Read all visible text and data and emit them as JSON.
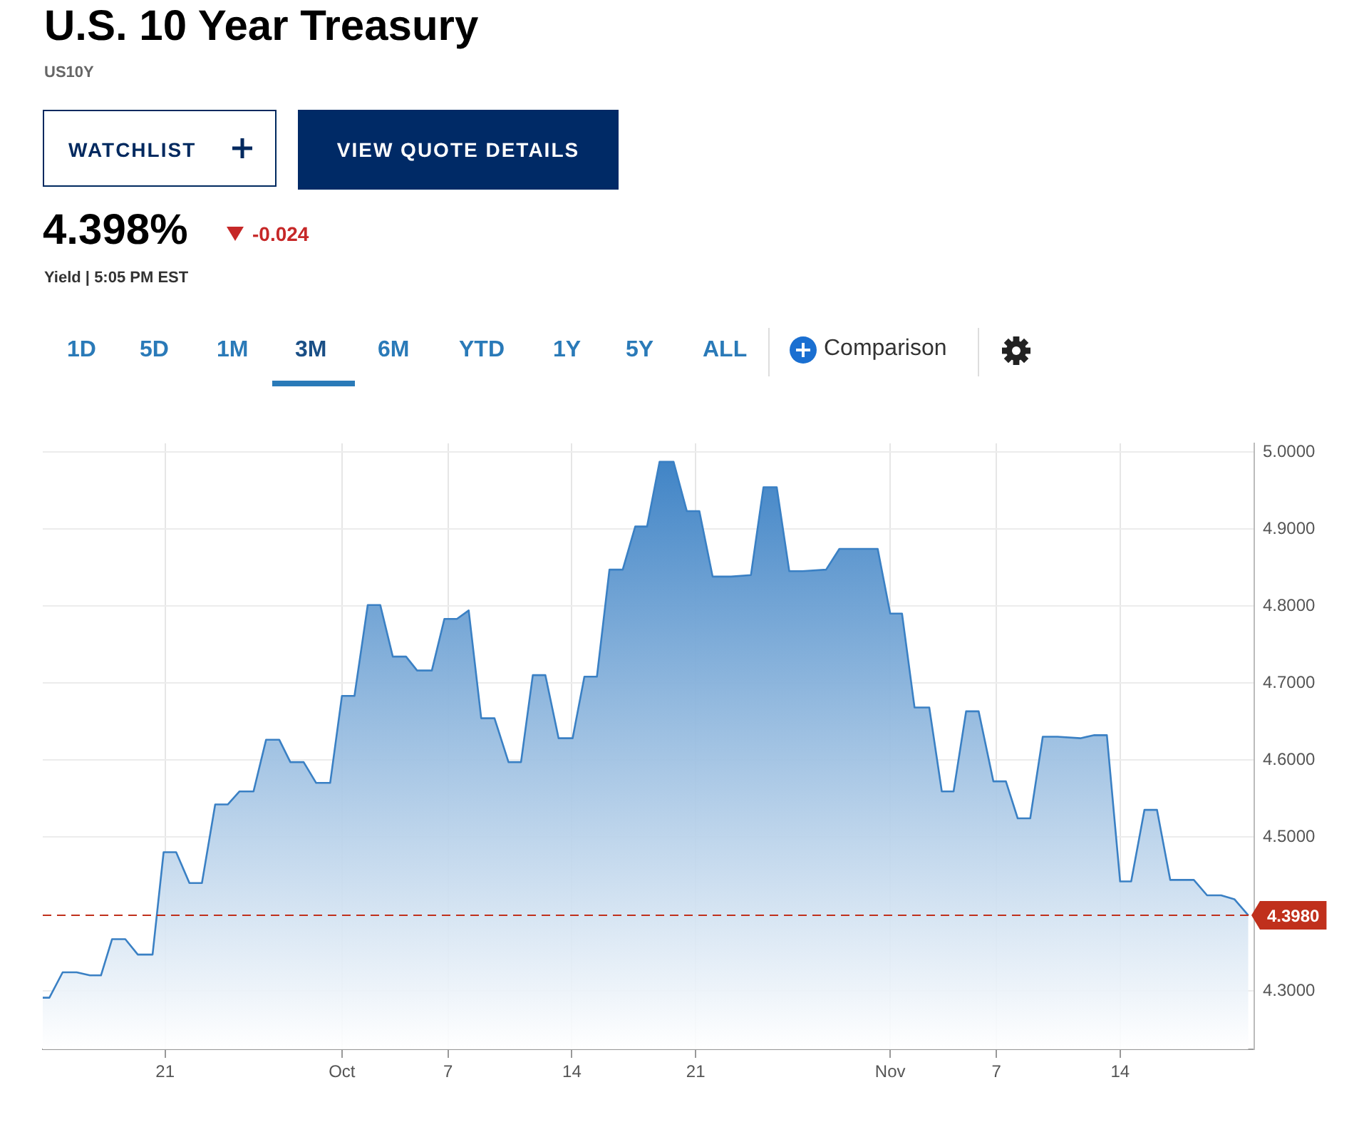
{
  "chart_data": {
    "type": "area",
    "title": "U.S. 10 Year Treasury",
    "subtitle": "US10Y",
    "annotations": [
      "4.398%",
      "-0.024",
      "Yield | 5:05 PM EST",
      "WATCHLIST",
      "VIEW QUOTE DETAILS",
      "1D",
      "5D",
      "1M",
      "3M",
      "6M",
      "YTD",
      "1Y",
      "5Y",
      "ALL",
      "Comparison"
    ],
    "x": [
      "--09-14T02:00",
      "--09-14T11:00",
      "--09-15T05:00",
      "--09-16T00:00",
      "--09-16T18:00",
      "--09-17T09:00",
      "--09-18T00:00",
      "--09-18T18:00",
      "--09-19T11:00",
      "--09-20T07:00",
      "--09-20T22:00",
      "--09-21T15:00",
      "--09-22T09:00",
      "--09-23T02:00",
      "--09-23T20:00",
      "--09-24T13:00",
      "--09-25T05:00",
      "--09-26T00:00",
      "--09-26T17:00",
      "--09-27T11:00",
      "--09-28T02:00",
      "--09-28T20:00",
      "--09-29T13:00",
      "--09-30T08:00",
      "--10-01T00:00",
      "--10-01T17:00",
      "--10-02T11:00",
      "--10-03T04:00",
      "--10-03T21:00",
      "--10-04T15:00",
      "--10-05T06:00",
      "--10-06T02:00",
      "--10-06T19:00",
      "--10-07T12:00",
      "--10-08T04:00",
      "--10-08T21:00",
      "--10-09T15:00",
      "--10-10T10:00",
      "--10-11T03:00",
      "--10-11T19:00",
      "--10-12T12:00",
      "--10-13T06:00",
      "--10-14T01:00",
      "--10-14T17:00",
      "--10-15T10:00",
      "--10-16T03:00",
      "--10-16T21:00",
      "--10-17T14:00",
      "--10-18T06:00",
      "--10-18T23:00",
      "--10-19T18:00",
      "--10-20T12:00",
      "--10-21T05:00",
      "--10-21T23:00",
      "--10-23T00:00",
      "--10-24T03:00",
      "--10-24T20:00",
      "--10-25T14:00",
      "--10-26T07:00",
      "--10-27T01:00",
      "--10-28T09:00",
      "--10-29T03:00",
      "--10-31T07:00",
      "--11-01T00:00",
      "--11-01T16:00",
      "--11-02T09:00",
      "--11-03T05:00",
      "--11-03T22:00",
      "--11-04T14:00",
      "--11-05T07:00",
      "--11-06T00:00",
      "--11-06T20:00",
      "--11-07T13:00",
      "--11-08T05:00",
      "--11-08T22:00",
      "--11-09T15:00",
      "--11-10T11:00",
      "--11-11T18:00",
      "--11-12T13:00",
      "--11-13T06:00",
      "--11-14T00:00",
      "--11-14T15:00",
      "--11-15T09:00",
      "--11-16T02:00",
      "--11-16T20:00",
      "--11-18T04:00",
      "--11-18T22:00",
      "--11-19T17:00",
      "--11-20T11:00",
      "--11-21T06:00"
    ],
    "series": [
      {
        "color": "#3a80c4",
        "values": [
          4.291,
          4.291,
          4.324,
          4.324,
          4.32,
          4.32,
          4.367,
          4.367,
          4.347,
          4.347,
          4.48,
          4.48,
          4.44,
          4.44,
          4.542,
          4.542,
          4.559,
          4.559,
          4.626,
          4.626,
          4.597,
          4.597,
          4.57,
          4.57,
          4.683,
          4.683,
          4.801,
          4.801,
          4.734,
          4.734,
          4.716,
          4.716,
          4.783,
          4.783,
          4.794,
          4.654,
          4.654,
          4.597,
          4.597,
          4.71,
          4.71,
          4.628,
          4.628,
          4.708,
          4.708,
          4.847,
          4.847,
          4.903,
          4.903,
          4.987,
          4.987,
          4.923,
          4.923,
          4.838,
          4.838,
          4.84,
          4.954,
          4.954,
          4.845,
          4.845,
          4.847,
          4.874,
          4.874,
          4.79,
          4.79,
          4.668,
          4.668,
          4.559,
          4.559,
          4.663,
          4.663,
          4.572,
          4.572,
          4.524,
          4.524,
          4.63,
          4.63,
          4.628,
          4.632,
          4.632,
          4.442,
          4.442,
          4.535,
          4.535,
          4.444,
          4.444,
          4.424,
          4.424,
          4.419,
          4.398
        ]
      }
    ],
    "xlim": [
      "--09-14T02:00",
      "--11-21T14:00"
    ],
    "xticks": [
      {
        "value": "--09-21",
        "label": "21"
      },
      {
        "value": "--10-01",
        "label": "Oct"
      },
      {
        "value": "--10-07",
        "label": "7"
      },
      {
        "value": "--10-14",
        "label": "14"
      },
      {
        "value": "--10-21",
        "label": "21"
      },
      {
        "value": "--11-01",
        "label": "Nov"
      },
      {
        "value": "--11-07",
        "label": "7"
      },
      {
        "value": "--11-14",
        "label": "14"
      }
    ],
    "ylim": [
      4.224,
      5.011
    ],
    "yticks": [
      {
        "value": 4.3,
        "label": "4.3000"
      },
      {
        "value": 4.5,
        "label": "4.5000"
      },
      {
        "value": 4.6,
        "label": "4.6000"
      },
      {
        "value": 4.7,
        "label": "4.7000"
      },
      {
        "value": 4.8,
        "label": "4.8000"
      },
      {
        "value": 4.9,
        "label": "4.9000"
      },
      {
        "value": 5.0,
        "label": "5.0000"
      }
    ],
    "ref_lines": [
      {
        "axis": "y",
        "value": 4.398,
        "label": "4.3980",
        "color": "#c0301c",
        "line_style": "dashed"
      }
    ],
    "grid": true,
    "legend": false,
    "marker": "none",
    "line_style": "solid"
  }
}
